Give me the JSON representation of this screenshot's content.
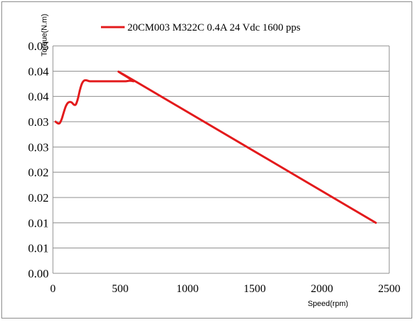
{
  "chart_data": {
    "type": "line",
    "title": "",
    "xlabel": "Speed(rpm)",
    "ylabel": "Torque(N.m)",
    "xlim": [
      0,
      2500
    ],
    "ylim": [
      0,
      0.045
    ],
    "x_ticks": [
      0,
      500,
      1000,
      1500,
      2000,
      2500
    ],
    "x_tick_labels": [
      "0",
      "500",
      "1000",
      "1500",
      "2000",
      "2500"
    ],
    "y_ticks": [
      0,
      0.005,
      0.01,
      0.015,
      0.02,
      0.025,
      0.03,
      0.035,
      0.04,
      0.045
    ],
    "y_tick_labels": [
      "0.00",
      "0.01",
      "0.01",
      "0.02",
      "0.02",
      "0.03",
      "0.03",
      "0.04",
      "0.04",
      "0.05"
    ],
    "grid": "horizontal",
    "legend": "top",
    "series": [
      {
        "name": "20CM003 M322C 0.4A  24 Vdc  1600 pps",
        "color": "#e31a1c",
        "x": [
          20,
          35,
          50,
          65,
          80,
          95,
          110,
          125,
          140,
          155,
          170,
          185,
          200,
          215,
          230,
          245,
          260,
          275,
          300,
          400,
          500,
          540,
          570,
          600,
          625,
          2400
        ],
        "y": [
          0.03,
          0.0297,
          0.0297,
          0.0305,
          0.0318,
          0.033,
          0.0337,
          0.0339,
          0.0338,
          0.0334,
          0.0334,
          0.0345,
          0.0362,
          0.0375,
          0.0381,
          0.0382,
          0.0381,
          0.038,
          0.038,
          0.038,
          0.038,
          0.038,
          0.0381,
          0.038,
          0.0378,
          0.01
        ]
      }
    ]
  }
}
